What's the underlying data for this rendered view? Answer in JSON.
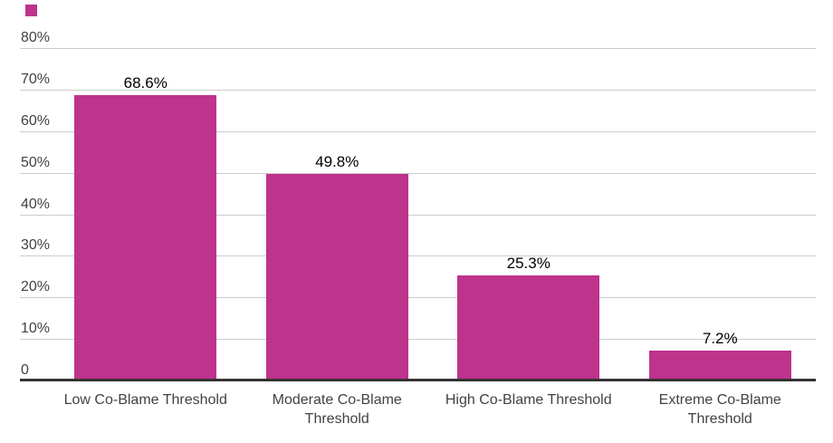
{
  "chart_data": {
    "type": "bar",
    "title": "",
    "xlabel": "",
    "ylabel": "",
    "categories": [
      "Low Co-Blame Threshold",
      "Moderate Co-Blame Threshold",
      "High Co-Blame Threshold",
      "Extreme Co-Blame Threshold"
    ],
    "values": [
      68.6,
      49.8,
      25.3,
      7.2
    ],
    "data_labels": [
      "68.6%",
      "49.8%",
      "25.3%",
      "7.2%"
    ],
    "ylim": [
      0,
      80
    ],
    "yticks": [
      {
        "value": 80,
        "label": "80%"
      },
      {
        "value": 70,
        "label": "70%"
      },
      {
        "value": 60,
        "label": "60%"
      },
      {
        "value": 50,
        "label": "50%"
      },
      {
        "value": 40,
        "label": "40%"
      },
      {
        "value": 30,
        "label": "30%"
      },
      {
        "value": 20,
        "label": "20%"
      },
      {
        "value": 10,
        "label": "10%"
      },
      {
        "value": 0,
        "label": "0"
      }
    ],
    "grid": true,
    "legend": {
      "position": "top-left",
      "label": ""
    },
    "colors": {
      "bar": "#BE338C",
      "gridline": "#CCCCCC",
      "axis_line": "#333333",
      "tick_label": "#424242",
      "category_label": "#424242",
      "data_label": "#000000",
      "background": "#FFFFFF"
    }
  }
}
